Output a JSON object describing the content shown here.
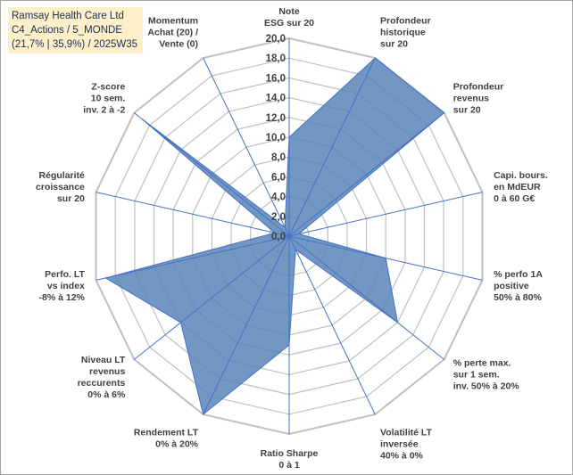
{
  "header": {
    "line1": "Ramsay Health Care Ltd",
    "line2": "C4_Actions / 5_MONDE",
    "line3": "(21,7% | 35,9%) / 2025W35"
  },
  "colors": {
    "fill": "#5b85b9",
    "stroke": "#4472c4",
    "grid": "#bfbfbf",
    "spoke": "#4472c4"
  },
  "chart_data": {
    "type": "radar",
    "title": "",
    "rlim": [
      0,
      20
    ],
    "ticks": [
      "0,0",
      "2,0",
      "4,0",
      "6,0",
      "8,0",
      "10,0",
      "12,0",
      "14,0",
      "16,0",
      "18,0",
      "20,0"
    ],
    "categories": [
      [
        "Note",
        "ESG sur 20"
      ],
      [
        "Profondeur",
        "historique",
        "sur 20"
      ],
      [
        "Profondeur",
        "revenus",
        "sur 20"
      ],
      [
        "Capi. bours.",
        "en MdEUR",
        "0 à 60 G€"
      ],
      [
        "% perfo 1A",
        "positive",
        "50% à 80%"
      ],
      [
        "% perte max.",
        "sur 1 sem.",
        "inv. 50% à 20%"
      ],
      [
        "Volatilité LT",
        "inversée",
        "40% à 0%"
      ],
      [
        "Ratio Sharpe",
        "0 à 1"
      ],
      [
        "Rendement LT",
        "0% à 20%"
      ],
      [
        "Niveau LT",
        "revenus",
        "reccurents",
        "0% à 6%"
      ],
      [
        "Perfo. LT",
        "vs index",
        "-8% à 12%"
      ],
      [
        "Régularité",
        "croissance",
        "sur 20"
      ],
      [
        "Z-score",
        "10 sem.",
        "inv. 2 à -2"
      ],
      [
        "Momentum",
        "Achat (20) /",
        "Vente (0)"
      ]
    ],
    "series": [
      {
        "values": [
          10,
          20,
          20,
          1,
          10,
          14,
          1.5,
          11,
          20,
          14,
          19,
          1.5,
          19,
          1
        ]
      }
    ],
    "grid": true
  }
}
